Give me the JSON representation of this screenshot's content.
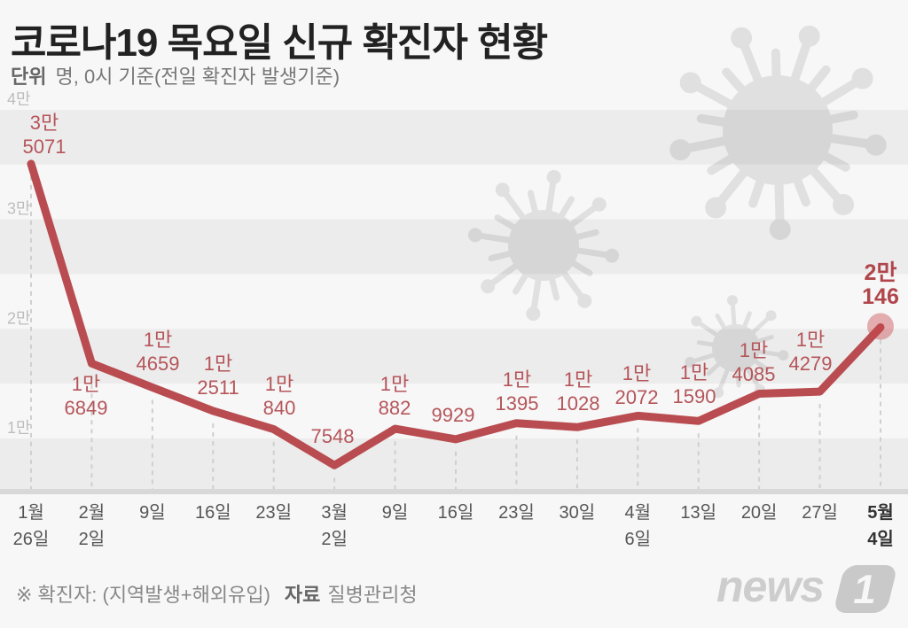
{
  "header": {
    "title": "코로나19 목요일 신규 확진자 현황",
    "unit_label": "단위",
    "unit_text": "명, 0시 기준(전일 확진자 발생기준)"
  },
  "footer": {
    "note": "※ 확진자: (지역발생+해외유입)",
    "source_label": "자료",
    "source": "질병관리청"
  },
  "logo": {
    "text": "news",
    "mark": "1"
  },
  "colors": {
    "line": "#b94c50",
    "label": "#b5555a",
    "highlight": "#c8464b",
    "band": "#ececec",
    "background": "#f7f7f7",
    "axis_text": "#555555",
    "tick_text": "#bdbdbd"
  },
  "chart_data": {
    "type": "line",
    "title": "코로나19 목요일 신규 확진자 현황",
    "subtitle": "단위 명, 0시 기준(전일 확진자 발생기준)",
    "xlabel": "",
    "ylabel": "명",
    "categories": [
      "1월 26일",
      "2월 2일",
      "2월 9일",
      "2월 16일",
      "2월 23일",
      "3월 2일",
      "3월 9일",
      "3월 16일",
      "3월 23일",
      "3월 30일",
      "4월 6일",
      "4월 13일",
      "4월 20일",
      "4월 27일",
      "5월 4일"
    ],
    "x_labels": [
      [
        "1월",
        "26일"
      ],
      [
        "2월",
        "2일"
      ],
      [
        "9일"
      ],
      [
        "16일"
      ],
      [
        "23일"
      ],
      [
        "3월",
        "2일"
      ],
      [
        "9일"
      ],
      [
        "16일"
      ],
      [
        "23일"
      ],
      [
        "30일"
      ],
      [
        "4월",
        "6일"
      ],
      [
        "13일"
      ],
      [
        "20일"
      ],
      [
        "27일"
      ],
      [
        "5월",
        "4일"
      ]
    ],
    "values": [
      35071,
      16849,
      14659,
      12511,
      10840,
      7548,
      10882,
      9929,
      11395,
      11028,
      12072,
      11590,
      14085,
      14279,
      20146
    ],
    "data_labels": [
      [
        "3만",
        "5071"
      ],
      [
        "1만",
        "6849"
      ],
      [
        "1만",
        "4659"
      ],
      [
        "1만",
        "2511"
      ],
      [
        "1만",
        "840"
      ],
      [
        "",
        "7548"
      ],
      [
        "1만",
        "882"
      ],
      [
        "",
        "9929"
      ],
      [
        "1만",
        "1395"
      ],
      [
        "1만",
        "1028"
      ],
      [
        "1만",
        "2072"
      ],
      [
        "1만",
        "1590"
      ],
      [
        "1만",
        "4085"
      ],
      [
        "1만",
        "4279"
      ],
      [
        "2만",
        "146"
      ]
    ],
    "label_position": [
      "above",
      "below",
      "above",
      "above",
      "above",
      "above",
      "above",
      "above",
      "above",
      "above",
      "above",
      "above",
      "above",
      "above",
      "above"
    ],
    "yticks": [
      {
        "value": 10000,
        "label": "1만"
      },
      {
        "value": 20000,
        "label": "2만"
      },
      {
        "value": 30000,
        "label": "3만"
      },
      {
        "value": 40000,
        "label": "4만"
      }
    ],
    "ylim": [
      5000,
      40000
    ],
    "grid": "alternating bands",
    "legend": null,
    "highlight_index": 14
  }
}
